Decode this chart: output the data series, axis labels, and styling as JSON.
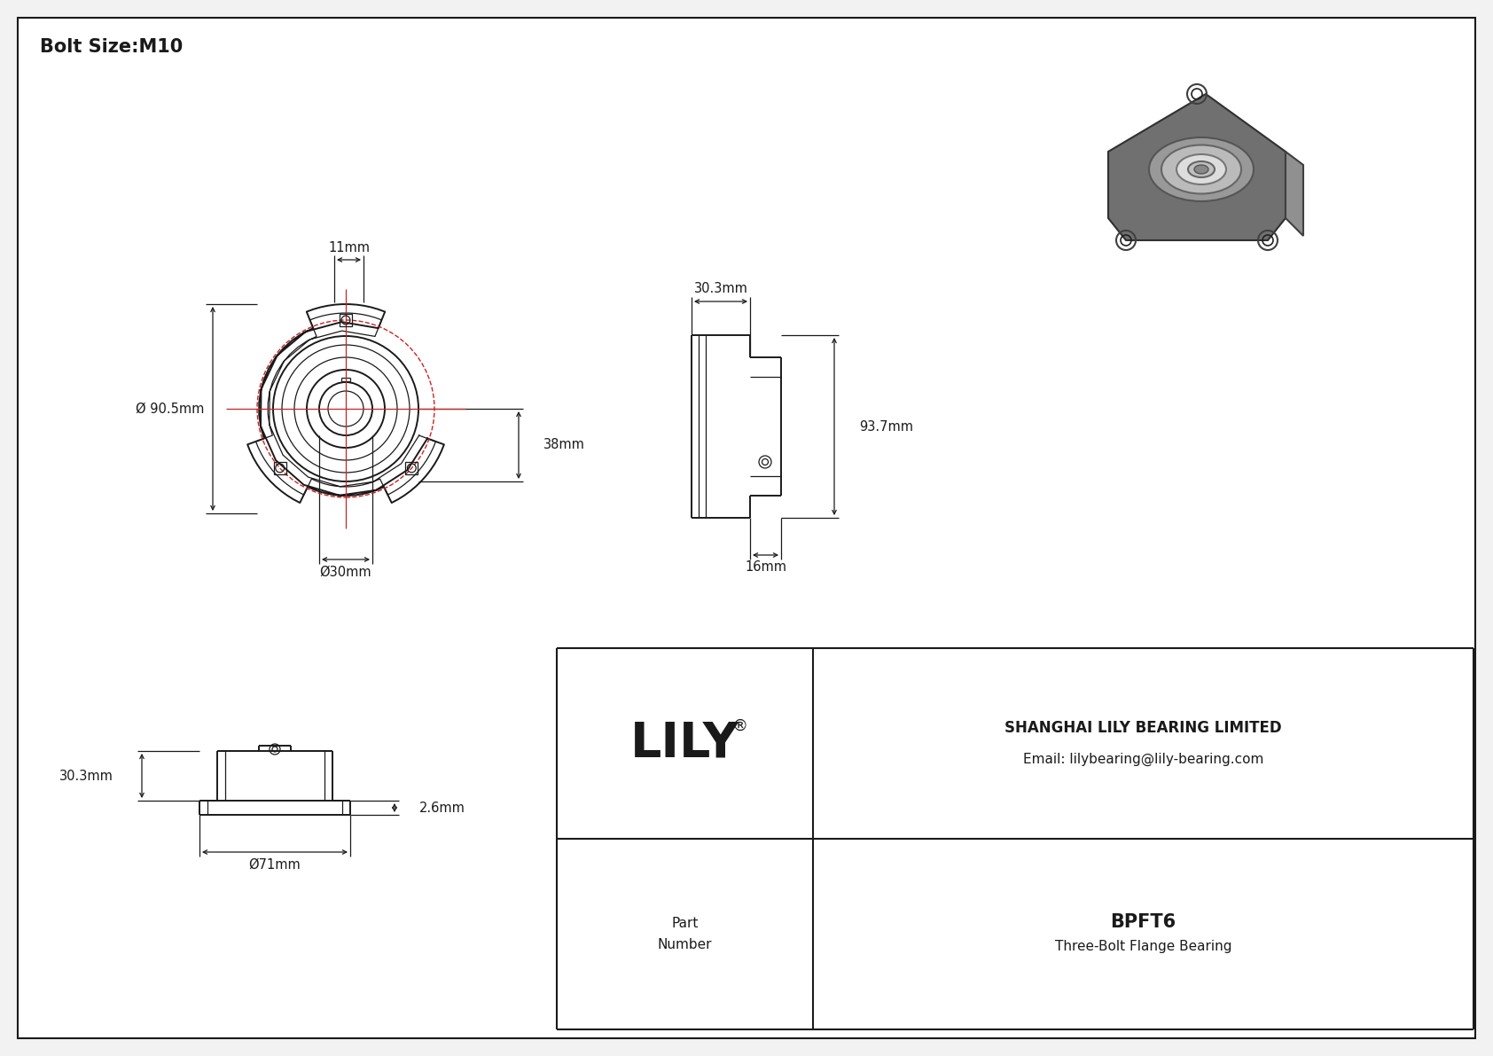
{
  "title": "Bolt Size:M10",
  "bg_color": "#f2f2f2",
  "white": "#ffffff",
  "line_color": "#1a1a1a",
  "red_color": "#cc2222",
  "dim_color": "#1a1a1a",
  "title_fontsize": 15,
  "label_fontsize": 10.5,
  "company_name": "SHANGHAI LILY BEARING LIMITED",
  "company_email": "Email: lilybearing@lily-bearing.com",
  "part_number": "BPFT6",
  "part_description": "Three-Bolt Flange Bearing",
  "brand": "LILY"
}
